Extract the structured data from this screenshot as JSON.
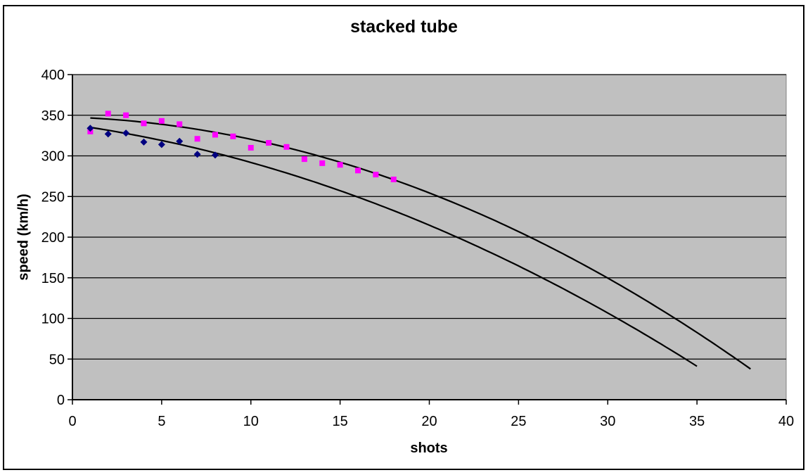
{
  "window": {
    "background_color": "#ffffff",
    "border_color": "#000000"
  },
  "chart_data": {
    "type": "scatter",
    "title": "stacked tube",
    "xlabel": "shots",
    "ylabel": "speed (km/h)",
    "xlim": [
      0,
      40
    ],
    "ylim": [
      0,
      400
    ],
    "xticks": [
      0,
      5,
      10,
      15,
      20,
      25,
      30,
      35,
      40
    ],
    "yticks": [
      0,
      50,
      100,
      150,
      200,
      250,
      300,
      350,
      400
    ],
    "grid": "horizontal",
    "legend_position": "none",
    "plot_bg_color": "#c0c0c0",
    "plot_border_color": "#808080",
    "gridline_color": "#000000",
    "axis_color": "#000000",
    "series": [
      {
        "name": "speed-series-squares",
        "marker": "square",
        "color": "#ff00ff",
        "points": [
          [
            1,
            330
          ],
          [
            2,
            352
          ],
          [
            3,
            350
          ],
          [
            4,
            340
          ],
          [
            5,
            343
          ],
          [
            6,
            339
          ],
          [
            7,
            321
          ],
          [
            8,
            326
          ],
          [
            9,
            324
          ],
          [
            10,
            310
          ],
          [
            11,
            316
          ],
          [
            12,
            311
          ],
          [
            13,
            296
          ],
          [
            14,
            291
          ],
          [
            15,
            289
          ],
          [
            16,
            282
          ],
          [
            17,
            277
          ],
          [
            18,
            271
          ]
        ]
      },
      {
        "name": "speed-series-diamonds",
        "marker": "diamond",
        "color": "#000080",
        "points": [
          [
            1,
            334
          ],
          [
            2,
            327
          ],
          [
            3,
            328
          ],
          [
            4,
            317
          ],
          [
            5,
            314
          ],
          [
            6,
            318
          ],
          [
            7,
            302
          ],
          [
            8,
            301
          ]
        ]
      }
    ],
    "trendlines": [
      {
        "name": "trendline-squares",
        "fits_series": "speed-series-squares",
        "type": "polynomial",
        "color": "#000000",
        "coefficients": {
          "a": 347.6,
          "b": -0.78,
          "c": -0.194
        },
        "x_start": 1,
        "x_end": 38
      },
      {
        "name": "trendline-diamonds",
        "fits_series": "speed-series-diamonds",
        "type": "polynomial",
        "color": "#000000",
        "coefficients": {
          "a": 338.3,
          "b": -3.1,
          "c": -0.154
        },
        "x_start": 1,
        "x_end": 35
      }
    ]
  }
}
